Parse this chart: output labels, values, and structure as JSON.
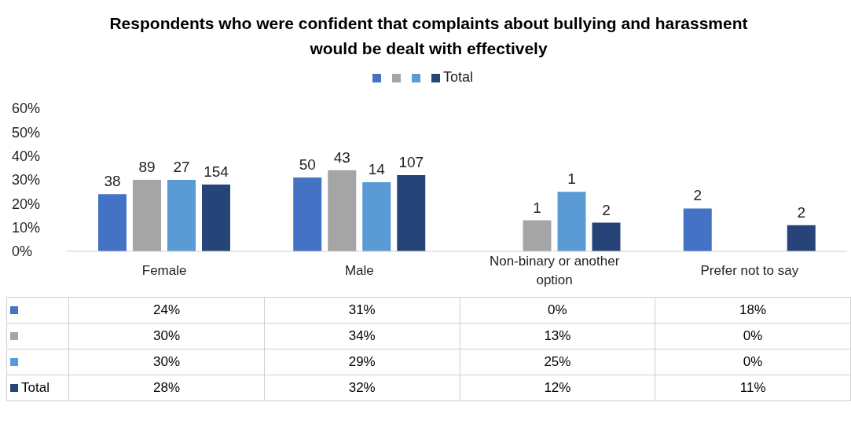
{
  "chart_data": {
    "type": "bar",
    "title": "Respondents who were confident that complaints about bullying and harassment would be dealt with effectively",
    "categories": [
      "Female",
      "Male",
      "Non-binary or another option",
      "Prefer not to say"
    ],
    "series": [
      {
        "color": "#4472c4",
        "values": [
          24,
          31,
          0,
          18
        ],
        "value_labels": [
          "24%",
          "31%",
          "0%",
          "18%"
        ]
      },
      {
        "color": "#a5a5a5",
        "values": [
          30,
          34,
          13,
          0
        ],
        "value_labels": [
          "30%",
          "34%",
          "13%",
          "0%"
        ]
      },
      {
        "color": "#5b9bd5",
        "values": [
          30,
          29,
          25,
          0
        ],
        "value_labels": [
          "30%",
          "29%",
          "25%",
          "0%"
        ]
      },
      {
        "name": "Total",
        "color": "#264478",
        "values": [
          28,
          32,
          12,
          11
        ],
        "value_labels": [
          "28%",
          "32%",
          "12%",
          "11%"
        ]
      }
    ],
    "annotations": [
      {
        "text": "38",
        "x": "Female",
        "y": 24
      },
      {
        "text": "89",
        "x": "Female",
        "y": 30
      },
      {
        "text": "27",
        "x": "Female",
        "y": 30
      },
      {
        "text": "154",
        "x": "Female",
        "y": 28
      },
      {
        "text": "50",
        "x": "Male",
        "y": 31
      },
      {
        "text": "43",
        "x": "Male",
        "y": 34
      },
      {
        "text": "14",
        "x": "Male",
        "y": 29
      },
      {
        "text": "107",
        "x": "Male",
        "y": 32
      },
      {
        "text": "1",
        "x": "Non-binary or another option",
        "y": 13
      },
      {
        "text": "1",
        "x": "Non-binary or another option",
        "y": 25
      },
      "2",
      "2",
      "2"
    ],
    "ylim": [
      0,
      60
    ],
    "yticks": [
      {
        "value": 0,
        "label": "0%"
      },
      {
        "value": 10,
        "label": "10%"
      },
      {
        "value": 20,
        "label": "20%"
      },
      {
        "value": 30,
        "label": "30%"
      },
      {
        "value": 40,
        "label": "40%"
      },
      {
        "value": 50,
        "label": "50%"
      },
      {
        "value": 60,
        "label": "60%"
      }
    ],
    "legend": "top"
  }
}
